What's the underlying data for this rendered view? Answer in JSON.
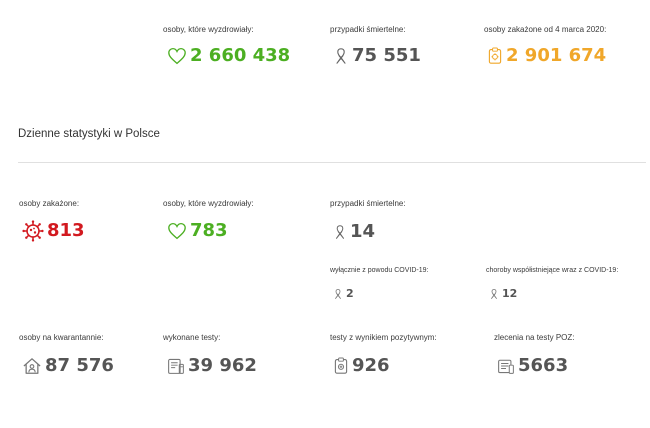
{
  "totals": {
    "recovered": {
      "label": "osoby, które wyzdrowiały:",
      "value": "2 660 438",
      "icon": "heart-icon",
      "color": "#4caf22"
    },
    "deaths": {
      "label": "przypadki śmiertelne:",
      "value": "75 551",
      "icon": "ribbon-icon",
      "color": "#555555"
    },
    "infected": {
      "label": "osoby zakażone od 4 marca 2020:",
      "value": "2 901 674",
      "icon": "clipboard-virus-icon",
      "color": "#f0a72a"
    }
  },
  "daily": {
    "title": "Dzienne statystyki w Polsce",
    "infected": {
      "label": "osoby zakażone:",
      "value": "813",
      "icon": "virus-icon",
      "color": "#d2191f"
    },
    "recovered": {
      "label": "osoby, które wyzdrowiały:",
      "value": "783",
      "icon": "heart-icon",
      "color": "#4caf22"
    },
    "deaths": {
      "label": "przypadki śmiertelne:",
      "value": "14",
      "icon": "ribbon-icon"
    },
    "deaths_covid_only": {
      "label": "wyłącznie z powodu COVID-19:",
      "value": "2",
      "icon": "ribbon-icon"
    },
    "deaths_comorbid": {
      "label": "choroby współistniejące wraz z COVID-19:",
      "value": "12",
      "icon": "ribbon-icon"
    },
    "quarantine": {
      "label": "osoby na kwarantannie:",
      "value": "87 576",
      "icon": "house-person-icon"
    },
    "tests": {
      "label": "wykonane testy:",
      "value": "39 962",
      "icon": "test-kit-icon"
    },
    "positive_tests": {
      "label": "testy z wynikiem pozytywnym:",
      "value": "926",
      "icon": "positive-test-icon"
    },
    "poz_orders": {
      "label": "zlecenia na testy POZ:",
      "value": "5663",
      "icon": "poz-order-icon"
    }
  }
}
